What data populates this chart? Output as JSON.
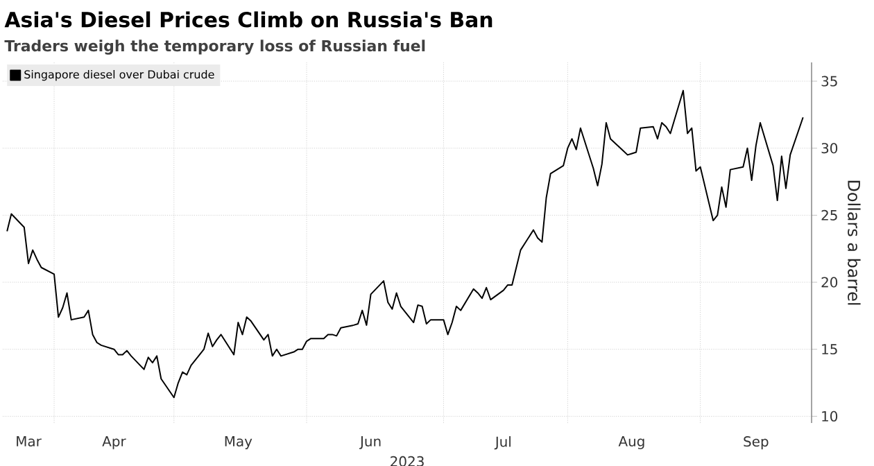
{
  "chart_data": {
    "type": "line",
    "title": "Asia's Diesel Prices Climb on Russia's Ban",
    "subtitle": "Traders weigh the temporary loss of Russian fuel",
    "xlabel": "2023",
    "ylabel": "Dollars a barrel",
    "x": [
      "2023-03-23",
      "2023-03-24",
      "2023-03-27",
      "2023-03-28",
      "2023-03-29",
      "2023-03-30",
      "2023-03-31",
      "2023-04-03",
      "2023-04-04",
      "2023-04-05",
      "2023-04-06",
      "2023-04-07",
      "2023-04-10",
      "2023-04-11",
      "2023-04-12",
      "2023-04-13",
      "2023-04-14",
      "2023-04-17",
      "2023-04-18",
      "2023-04-19",
      "2023-04-20",
      "2023-04-21",
      "2023-04-24",
      "2023-04-25",
      "2023-04-26",
      "2023-04-27",
      "2023-04-28",
      "2023-05-01",
      "2023-05-02",
      "2023-05-03",
      "2023-05-04",
      "2023-05-05",
      "2023-05-08",
      "2023-05-09",
      "2023-05-10",
      "2023-05-11",
      "2023-05-12",
      "2023-05-15",
      "2023-05-16",
      "2023-05-17",
      "2023-05-18",
      "2023-05-19",
      "2023-05-22",
      "2023-05-23",
      "2023-05-24",
      "2023-05-25",
      "2023-05-26",
      "2023-05-29",
      "2023-05-30",
      "2023-05-31",
      "2023-06-01",
      "2023-06-02",
      "2023-06-05",
      "2023-06-06",
      "2023-06-07",
      "2023-06-08",
      "2023-06-09",
      "2023-06-12",
      "2023-06-13",
      "2023-06-14",
      "2023-06-15",
      "2023-06-16",
      "2023-06-19",
      "2023-06-20",
      "2023-06-21",
      "2023-06-22",
      "2023-06-23",
      "2023-06-26",
      "2023-06-27",
      "2023-06-28",
      "2023-06-29",
      "2023-06-30",
      "2023-07-03",
      "2023-07-04",
      "2023-07-05",
      "2023-07-06",
      "2023-07-07",
      "2023-07-10",
      "2023-07-11",
      "2023-07-12",
      "2023-07-13",
      "2023-07-14",
      "2023-07-17",
      "2023-07-18",
      "2023-07-19",
      "2023-07-20",
      "2023-07-21",
      "2023-07-24",
      "2023-07-25",
      "2023-07-26",
      "2023-07-27",
      "2023-07-28",
      "2023-07-31",
      "2023-08-01",
      "2023-08-02",
      "2023-08-03",
      "2023-08-04",
      "2023-08-07",
      "2023-08-08",
      "2023-08-09",
      "2023-08-10",
      "2023-08-11",
      "2023-08-14",
      "2023-08-15",
      "2023-08-16",
      "2023-08-17",
      "2023-08-18",
      "2023-08-21",
      "2023-08-22",
      "2023-08-23",
      "2023-08-24",
      "2023-08-25",
      "2023-08-28",
      "2023-08-29",
      "2023-08-30",
      "2023-08-31",
      "2023-09-01",
      "2023-09-04",
      "2023-09-05",
      "2023-09-06",
      "2023-09-07",
      "2023-09-08",
      "2023-09-11",
      "2023-09-12",
      "2023-09-13",
      "2023-09-14",
      "2023-09-15",
      "2023-09-18",
      "2023-09-19",
      "2023-09-20",
      "2023-09-21",
      "2023-09-22",
      "2023-09-25"
    ],
    "series": [
      {
        "name": "Singapore diesel over Dubai crude",
        "color": "#000000",
        "values": [
          23.8,
          25.1,
          24.1,
          21.4,
          22.4,
          21.7,
          21.1,
          20.6,
          17.4,
          18.1,
          19.2,
          17.2,
          17.4,
          17.9,
          16.1,
          15.5,
          15.3,
          15.0,
          14.6,
          14.6,
          14.9,
          14.5,
          13.5,
          14.4,
          14.0,
          14.5,
          12.8,
          11.4,
          12.5,
          13.3,
          13.1,
          13.8,
          15.0,
          16.2,
          15.2,
          15.7,
          16.1,
          14.6,
          17.0,
          16.1,
          17.4,
          17.1,
          15.7,
          16.1,
          14.5,
          15.0,
          14.5,
          14.8,
          15.0,
          15.0,
          15.6,
          15.8,
          15.8,
          16.1,
          16.1,
          16.0,
          16.6,
          16.8,
          16.9,
          17.9,
          16.8,
          19.1,
          20.1,
          18.5,
          18.0,
          19.2,
          18.2,
          17.0,
          18.3,
          18.2,
          16.9,
          17.2,
          17.2,
          16.1,
          17.0,
          18.2,
          17.9,
          19.5,
          19.2,
          18.8,
          19.6,
          18.7,
          19.4,
          19.8,
          19.8,
          21.1,
          22.4,
          23.9,
          23.3,
          23.0,
          26.3,
          28.1,
          28.7,
          30.0,
          30.7,
          29.9,
          31.5,
          28.5,
          27.2,
          28.8,
          31.9,
          30.7,
          29.8,
          29.5,
          29.6,
          29.7,
          31.5,
          31.6,
          30.7,
          31.9,
          31.6,
          31.1,
          34.3,
          31.1,
          31.5,
          28.3,
          28.6,
          24.6,
          25.0,
          27.1,
          25.6,
          28.4,
          28.6,
          30.0,
          27.6,
          30.2,
          31.9,
          28.7,
          26.1,
          29.4,
          27.0,
          29.5,
          32.3
        ]
      }
    ],
    "xlim": [
      "2023-03-22",
      "2023-09-27"
    ],
    "xticks": [
      {
        "value": "2023-03-28",
        "label": "Mar"
      },
      {
        "value": "2023-04-03",
        "label": null
      },
      {
        "value": "2023-04-17",
        "label": "Apr"
      },
      {
        "value": "2023-05-01",
        "label": null
      },
      {
        "value": "2023-05-16",
        "label": "May"
      },
      {
        "value": "2023-06-01",
        "label": null
      },
      {
        "value": "2023-06-16",
        "label": "Jun"
      },
      {
        "value": "2023-07-03",
        "label": null
      },
      {
        "value": "2023-07-17",
        "label": "Jul"
      },
      {
        "value": "2023-08-01",
        "label": null
      },
      {
        "value": "2023-08-16",
        "label": "Aug"
      },
      {
        "value": "2023-09-01",
        "label": null
      },
      {
        "value": "2023-09-14",
        "label": "Sep"
      }
    ],
    "ylim": [
      9.5,
      36.4
    ],
    "yticks": [
      10,
      15,
      20,
      25,
      30,
      35
    ],
    "grid": true,
    "legend": "top left",
    "marker": "none",
    "line_style": "solid"
  }
}
